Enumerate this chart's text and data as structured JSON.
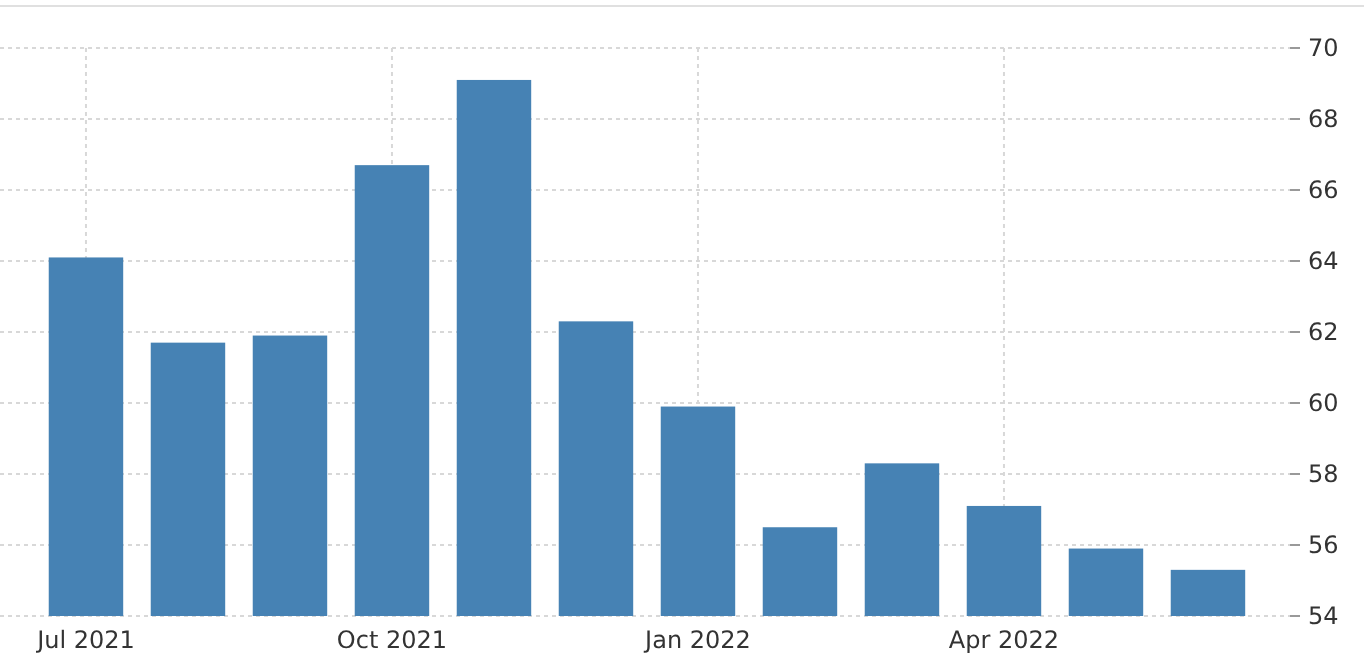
{
  "chart_data": {
    "type": "bar",
    "categories": [
      "Jul 2021",
      null,
      null,
      "Oct 2021",
      null,
      null,
      "Jan 2022",
      null,
      null,
      "Apr 2022",
      null,
      null
    ],
    "values": [
      64.1,
      61.7,
      61.9,
      66.7,
      69.1,
      62.3,
      59.9,
      56.5,
      58.3,
      57.1,
      55.9,
      55.3
    ],
    "color": "#4682b4",
    "ylim": [
      54,
      70
    ],
    "yticks": [
      54,
      56,
      58,
      60,
      62,
      64,
      66,
      68,
      70
    ],
    "grid": true
  }
}
